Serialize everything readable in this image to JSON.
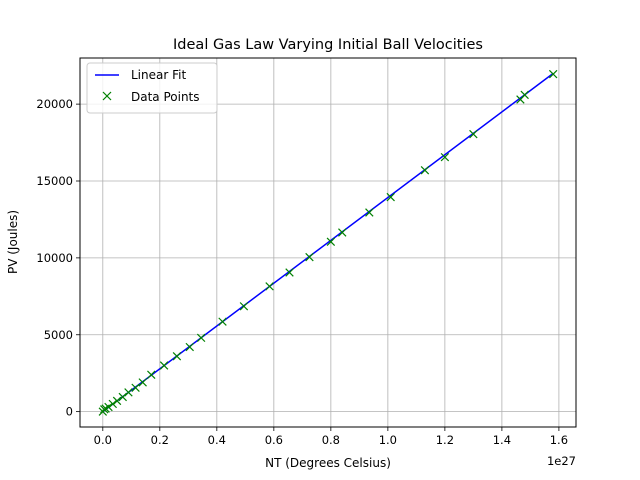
{
  "chart_data": {
    "type": "line",
    "title": "Ideal Gas Law Varying Initial Ball Velocities",
    "xlabel": "NT (Degrees Celsius)",
    "ylabel": "PV (Joules)",
    "x_offset_label": "1e27",
    "xlim": [
      -0.08,
      1.66
    ],
    "ylim": [
      -1000,
      23000
    ],
    "x_ticks": [
      0.0,
      0.2,
      0.4,
      0.6,
      0.8,
      1.0,
      1.2,
      1.4,
      1.6
    ],
    "x_tick_labels": [
      "0.0",
      "0.2",
      "0.4",
      "0.6",
      "0.8",
      "1.0",
      "1.2",
      "1.4",
      "1.6"
    ],
    "y_ticks": [
      0,
      5000,
      10000,
      15000,
      20000
    ],
    "y_tick_labels": [
      "0",
      "5000",
      "10000",
      "15000",
      "20000"
    ],
    "grid": true,
    "legend_position": "upper-left",
    "colors": {
      "fit": "#0000ff",
      "points": "#008000",
      "grid": "#b0b0b0"
    },
    "series": [
      {
        "name": "Linear Fit",
        "style": "line",
        "x": [
          0.0,
          1.58
        ],
        "y": [
          0,
          22000
        ]
      },
      {
        "name": "Data Points",
        "style": "x-marker",
        "x": [
          0.0,
          0.005,
          0.01,
          0.02,
          0.035,
          0.05,
          0.07,
          0.09,
          0.115,
          0.14,
          0.17,
          0.215,
          0.26,
          0.305,
          0.345,
          0.42,
          0.495,
          0.585,
          0.655,
          0.725,
          0.8,
          0.84,
          0.935,
          1.01,
          1.13,
          1.2,
          1.3,
          1.465,
          1.48,
          1.58
        ],
        "y": [
          0,
          150,
          200,
          300,
          500,
          700,
          950,
          1250,
          1550,
          1900,
          2400,
          3000,
          3600,
          4200,
          4800,
          5850,
          6850,
          8150,
          9050,
          10050,
          11050,
          11650,
          12950,
          13950,
          15700,
          16550,
          18050,
          20300,
          20600,
          21950
        ]
      }
    ]
  }
}
